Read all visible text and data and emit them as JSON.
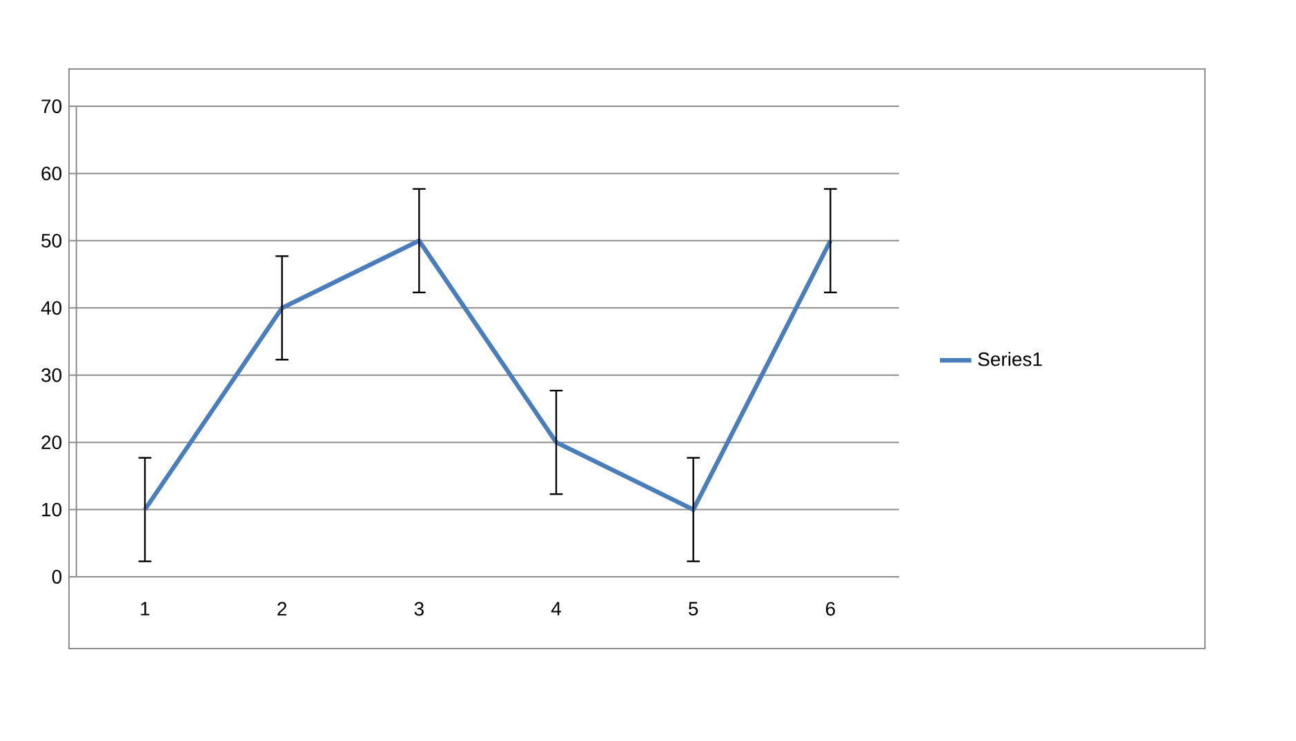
{
  "chart_data": {
    "type": "line",
    "categories": [
      "1",
      "2",
      "3",
      "4",
      "5",
      "6"
    ],
    "series": [
      {
        "name": "Series1",
        "color": "#4a7ebb",
        "values": [
          10,
          40,
          50,
          20,
          10,
          50
        ],
        "errors": [
          7.7,
          7.7,
          7.7,
          7.7,
          7.7,
          7.7
        ]
      }
    ],
    "ylim": [
      0,
      70
    ],
    "yticks": [
      0,
      10,
      20,
      30,
      40,
      50,
      60,
      70
    ],
    "grid": "y",
    "legend": "right"
  }
}
